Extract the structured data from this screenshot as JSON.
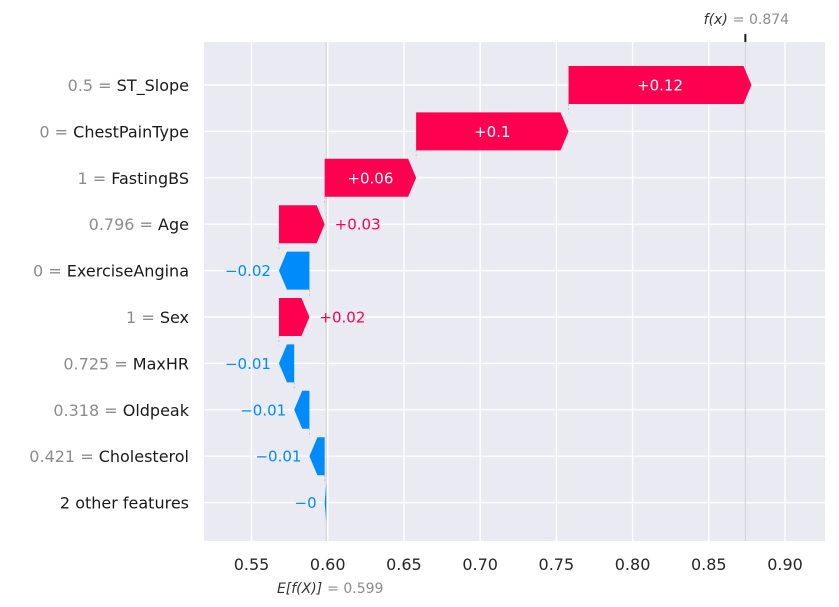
{
  "chart_data": {
    "type": "bar",
    "subtype": "waterfall",
    "xlim": [
      0.52,
      0.81
    ],
    "x_ticks": [
      "0.55",
      "0.60",
      "0.65",
      "0.70",
      "0.75",
      "0.80",
      "0.85",
      "0.90"
    ],
    "x_tick_values": [
      0.55,
      0.6,
      0.65,
      0.7,
      0.75,
      0.8,
      0.85,
      0.9
    ],
    "grid": true,
    "colors": {
      "positive": "#ff0051",
      "negative": "#008bfb",
      "plot_bg": "#eaeaf2",
      "grid": "#ffffff"
    },
    "base": {
      "label_prefix": "E[f(X)]",
      "label_value": "= 0.599",
      "value": 0.599
    },
    "final": {
      "label_prefix": "f(x)",
      "label_value": "= 0.874",
      "value": 0.874
    },
    "features": [
      {
        "value_text": "0.5",
        "name": "ST_Slope",
        "contribution": 0.12,
        "label": "+0.12"
      },
      {
        "value_text": "0",
        "name": "ChestPainType",
        "contribution": 0.1,
        "label": "+0.1"
      },
      {
        "value_text": "1",
        "name": "FastingBS",
        "contribution": 0.06,
        "label": "+0.06"
      },
      {
        "value_text": "0.796",
        "name": "Age",
        "contribution": 0.03,
        "label": "+0.03"
      },
      {
        "value_text": "0",
        "name": "ExerciseAngina",
        "contribution": -0.02,
        "label": "−0.02"
      },
      {
        "value_text": "1",
        "name": "Sex",
        "contribution": 0.02,
        "label": "+0.02"
      },
      {
        "value_text": "0.725",
        "name": "MaxHR",
        "contribution": -0.01,
        "label": "−0.01"
      },
      {
        "value_text": "0.318",
        "name": "Oldpeak",
        "contribution": -0.01,
        "label": "−0.01"
      },
      {
        "value_text": "0.421",
        "name": "Cholesterol",
        "contribution": -0.01,
        "label": "−0.01"
      },
      {
        "value_text": "",
        "name": "2 other features",
        "contribution": -0.001,
        "label": "−0"
      }
    ]
  }
}
